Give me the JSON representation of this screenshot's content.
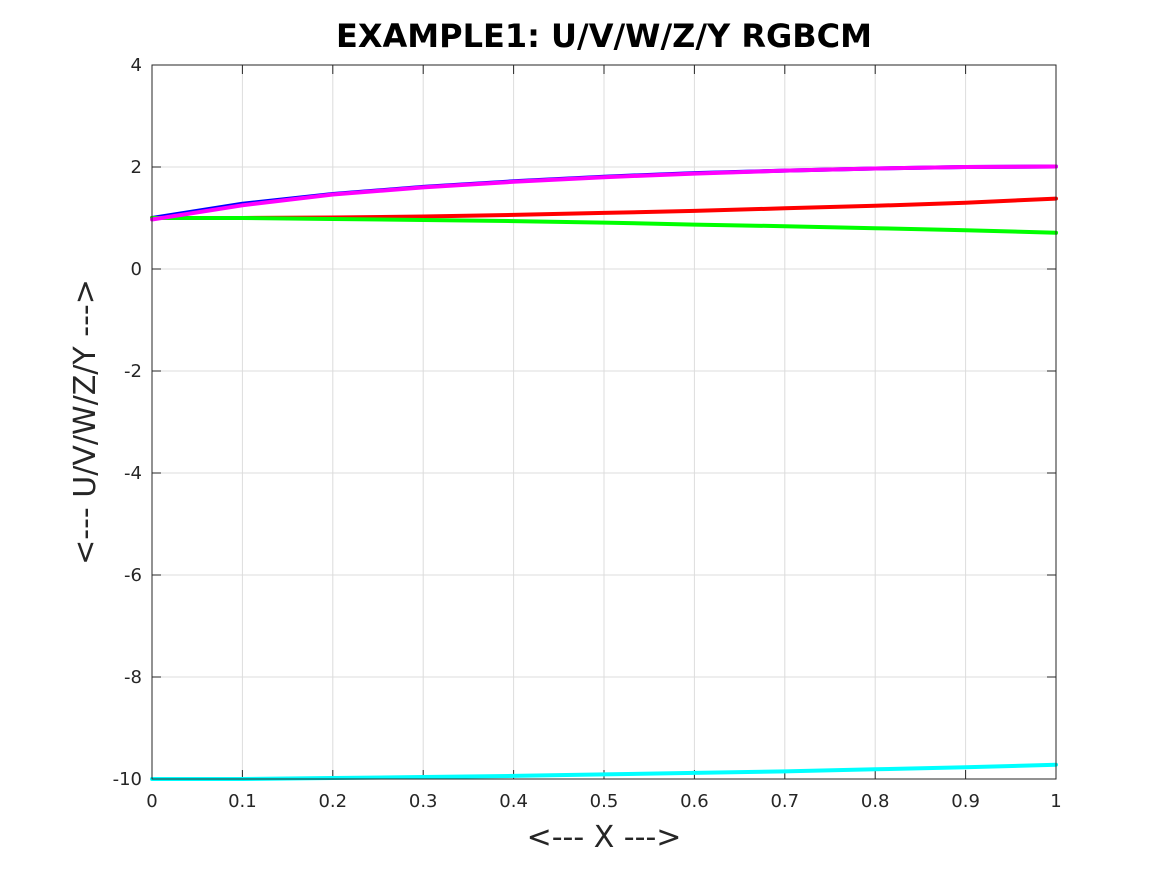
{
  "chart_data": {
    "type": "line",
    "title": "EXAMPLE1: U/V/W/Z/Y RGBCM",
    "xlabel": "<--- X --->",
    "ylabel": "<--- U/V/W/Z/Y --->",
    "xlim": [
      0,
      1
    ],
    "ylim": [
      -10,
      4
    ],
    "xticks": [
      0,
      0.1,
      0.2,
      0.3,
      0.4,
      0.5,
      0.6,
      0.7,
      0.8,
      0.9,
      1
    ],
    "xtick_labels": [
      "0",
      "0.1",
      "0.2",
      "0.3",
      "0.4",
      "0.5",
      "0.6",
      "0.7",
      "0.8",
      "0.9",
      "1"
    ],
    "yticks": [
      -10,
      -8,
      -6,
      -4,
      -2,
      0,
      2,
      4
    ],
    "ytick_labels": [
      "-10",
      "-8",
      "-6",
      "-4",
      "-2",
      "0",
      "2",
      "4"
    ],
    "grid": true,
    "x": [
      0,
      0.1,
      0.2,
      0.3,
      0.4,
      0.5,
      0.6,
      0.7,
      0.8,
      0.9,
      1.0
    ],
    "series": [
      {
        "color": "#0000ff",
        "values": [
          1.0,
          1.28,
          1.47,
          1.61,
          1.72,
          1.81,
          1.88,
          1.93,
          1.97,
          2.0,
          2.01
        ]
      },
      {
        "color": "#ff0000",
        "values": [
          1.0,
          1.0,
          1.01,
          1.03,
          1.06,
          1.1,
          1.14,
          1.19,
          1.24,
          1.3,
          1.38
        ]
      },
      {
        "color": "#00ff00",
        "values": [
          1.0,
          1.0,
          0.98,
          0.96,
          0.94,
          0.91,
          0.87,
          0.84,
          0.8,
          0.76,
          0.71
        ]
      },
      {
        "color": "#00ffff",
        "values": [
          -10.0,
          -10.0,
          -9.98,
          -9.96,
          -9.94,
          -9.91,
          -9.88,
          -9.85,
          -9.81,
          -9.77,
          -9.72
        ]
      },
      {
        "color": "#ff00ff",
        "values": [
          0.97,
          1.25,
          1.46,
          1.6,
          1.71,
          1.8,
          1.87,
          1.93,
          1.97,
          2.0,
          2.01
        ]
      }
    ]
  }
}
